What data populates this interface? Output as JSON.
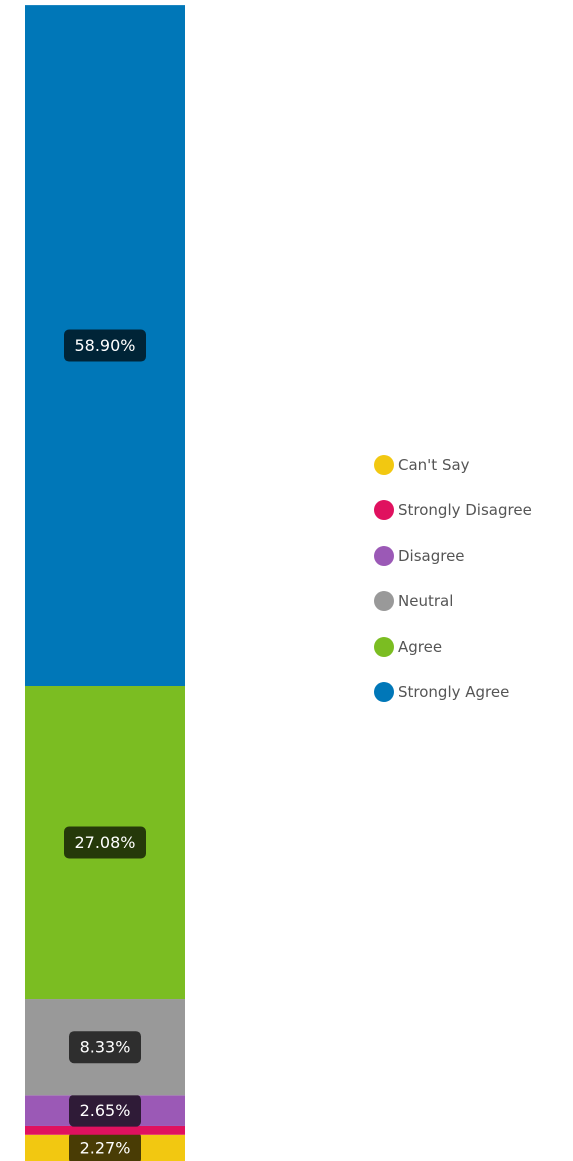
{
  "chart_data": {
    "type": "bar",
    "stacked": true,
    "orientation": "vertical",
    "categories": [
      ""
    ],
    "series": [
      {
        "name": "Can't Say",
        "values": [
          2.27
        ],
        "color": "#F2C811",
        "label": "2.27%"
      },
      {
        "name": "Strongly Disagree",
        "values": [
          0.76
        ],
        "color": "#E0115F",
        "label": ""
      },
      {
        "name": "Disagree",
        "values": [
          2.65
        ],
        "color": "#9B59B6",
        "label": "2.65%"
      },
      {
        "name": "Neutral",
        "values": [
          8.33
        ],
        "color": "#999999",
        "label": "8.33%"
      },
      {
        "name": "Agree",
        "values": [
          27.08
        ],
        "color": "#7BBD22",
        "label": "27.08%"
      },
      {
        "name": "Strongly Agree",
        "values": [
          58.9
        ],
        "color": "#0077B8",
        "label": "58.90%"
      }
    ],
    "ylim": [
      0,
      100
    ],
    "title": "",
    "xlabel": "",
    "ylabel": "",
    "grid": false,
    "legend_position": "right"
  }
}
